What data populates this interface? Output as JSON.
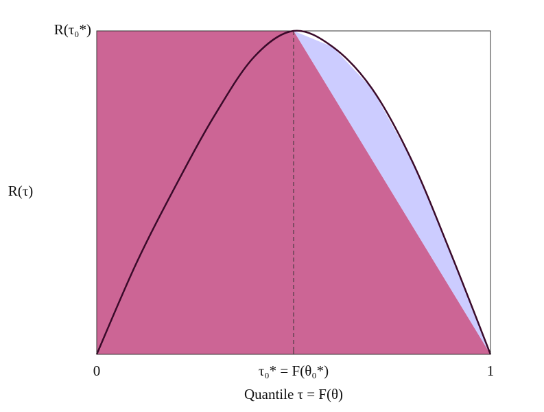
{
  "chart_data": {
    "type": "line",
    "x_label": "Quantile τ = F(θ)",
    "y_label": "R(τ)",
    "x": [
      0,
      0.1,
      0.2,
      0.3,
      0.4,
      0.5,
      0.6,
      0.7,
      0.8,
      0.9,
      1
    ],
    "series": [
      {
        "name": "R(τ)",
        "color": "#3a0a2a",
        "values": [
          0,
          0.28,
          0.52,
          0.74,
          0.92,
          1,
          0.95,
          0.82,
          0.6,
          0.31,
          0
        ]
      }
    ],
    "optimum": 0.5,
    "revenue_color": "#cc6595",
    "gap_color": "#ccccff",
    "xlim": [
      0,
      1
    ],
    "ylim": [
      0,
      1
    ],
    "xticks": [
      0,
      {
        "value": 0.5,
        "label": "τ₀* = F(θ₀*)"
      },
      1
    ],
    "yticks": [
      {
        "value": 1,
        "label": "R(τ₀*)"
      }
    ]
  }
}
